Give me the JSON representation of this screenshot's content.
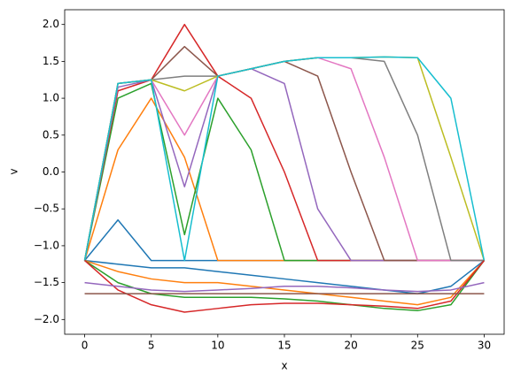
{
  "chart_data": {
    "type": "line",
    "xlabel": "x",
    "ylabel": "v",
    "x": [
      0,
      2.5,
      5,
      7.5,
      10,
      12.5,
      15,
      17.5,
      20,
      22.5,
      25,
      27.5,
      30
    ],
    "series": [
      {
        "color": "#1f77b4",
        "values": [
          -1.2,
          -0.65,
          -1.2,
          -1.2,
          -1.2,
          -1.2,
          -1.2,
          -1.2,
          -1.2,
          -1.2,
          -1.2,
          -1.2,
          -1.2
        ]
      },
      {
        "color": "#ff7f0e",
        "values": [
          -1.2,
          0.3,
          1.0,
          0.2,
          -1.2,
          -1.2,
          -1.2,
          -1.2,
          -1.2,
          -1.2,
          -1.2,
          -1.2,
          -1.2
        ]
      },
      {
        "color": "#2ca02c",
        "values": [
          -1.2,
          1.0,
          1.2,
          -0.85,
          1.0,
          0.3,
          -1.2,
          -1.2,
          -1.2,
          -1.2,
          -1.2,
          -1.2,
          -1.2
        ]
      },
      {
        "color": "#d62728",
        "values": [
          -1.2,
          1.1,
          1.25,
          2.0,
          1.3,
          1.0,
          0.0,
          -1.2,
          -1.2,
          -1.2,
          -1.2,
          -1.2,
          -1.2
        ]
      },
      {
        "color": "#9467bd",
        "values": [
          -1.2,
          1.15,
          1.25,
          -0.2,
          1.3,
          1.4,
          1.2,
          -0.5,
          -1.2,
          -1.2,
          -1.2,
          -1.2,
          -1.2
        ]
      },
      {
        "color": "#8c564b",
        "values": [
          -1.2,
          1.2,
          1.25,
          1.7,
          1.3,
          1.4,
          1.5,
          1.3,
          0.0,
          -1.2,
          -1.2,
          -1.2,
          -1.2
        ]
      },
      {
        "color": "#e377c2",
        "values": [
          -1.2,
          1.2,
          1.25,
          0.5,
          1.3,
          1.4,
          1.5,
          1.55,
          1.4,
          0.2,
          -1.2,
          -1.2,
          -1.2
        ]
      },
      {
        "color": "#7f7f7f",
        "values": [
          -1.2,
          1.2,
          1.25,
          1.3,
          1.3,
          1.4,
          1.5,
          1.55,
          1.55,
          1.5,
          0.5,
          -1.2,
          -1.2
        ]
      },
      {
        "color": "#bcbd22",
        "values": [
          -1.2,
          1.2,
          1.25,
          1.1,
          1.3,
          1.4,
          1.5,
          1.55,
          1.55,
          1.56,
          1.55,
          0.2,
          -1.2
        ]
      },
      {
        "color": "#17becf",
        "values": [
          -1.2,
          1.2,
          1.25,
          -1.2,
          1.3,
          1.4,
          1.5,
          1.55,
          1.55,
          1.56,
          1.55,
          1.0,
          -1.2
        ]
      },
      {
        "color": "#1f77b4",
        "values": [
          -1.2,
          -1.25,
          -1.3,
          -1.3,
          -1.35,
          -1.4,
          -1.45,
          -1.5,
          -1.55,
          -1.6,
          -1.65,
          -1.55,
          -1.2
        ]
      },
      {
        "color": "#ff7f0e",
        "values": [
          -1.2,
          -1.35,
          -1.45,
          -1.5,
          -1.5,
          -1.55,
          -1.6,
          -1.65,
          -1.7,
          -1.75,
          -1.8,
          -1.7,
          -1.2
        ]
      },
      {
        "color": "#2ca02c",
        "values": [
          -1.2,
          -1.5,
          -1.65,
          -1.7,
          -1.7,
          -1.7,
          -1.72,
          -1.75,
          -1.8,
          -1.85,
          -1.88,
          -1.8,
          -1.2
        ]
      },
      {
        "color": "#d62728",
        "values": [
          -1.2,
          -1.6,
          -1.8,
          -1.9,
          -1.85,
          -1.8,
          -1.78,
          -1.78,
          -1.8,
          -1.82,
          -1.85,
          -1.75,
          -1.2
        ]
      },
      {
        "color": "#9467bd",
        "values": [
          -1.5,
          -1.55,
          -1.6,
          -1.62,
          -1.6,
          -1.58,
          -1.55,
          -1.55,
          -1.57,
          -1.6,
          -1.62,
          -1.6,
          -1.5
        ]
      },
      {
        "color": "#8c564b",
        "values": [
          -1.65,
          -1.65,
          -1.65,
          -1.65,
          -1.65,
          -1.65,
          -1.65,
          -1.65,
          -1.65,
          -1.65,
          -1.65,
          -1.65,
          -1.65
        ]
      }
    ],
    "xlim": [
      -1.5,
      31.5
    ],
    "ylim": [
      -2.2,
      2.2
    ],
    "xticks": [
      0,
      5,
      10,
      15,
      20,
      25,
      30
    ],
    "yticks": [
      {
        "value": -2,
        "label": "−2.0"
      },
      {
        "value": -1.5,
        "label": "−1.5"
      },
      {
        "value": -1,
        "label": "−1.0"
      },
      {
        "value": -0.5,
        "label": "−0.5"
      },
      {
        "value": 0,
        "label": "0.0"
      },
      {
        "value": 0.5,
        "label": "0.5"
      },
      {
        "value": 1,
        "label": "1.0"
      },
      {
        "value": 1.5,
        "label": "1.5"
      },
      {
        "value": 2,
        "label": "2.0"
      }
    ]
  }
}
